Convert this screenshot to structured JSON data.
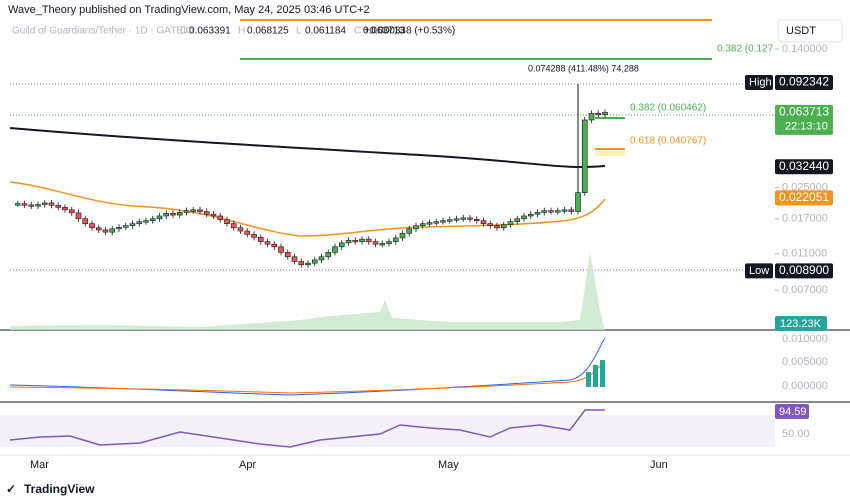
{
  "header": {
    "publisher": "Wave_Theory published on TradingView.com, May 24, 2025 03:46 UTC+2",
    "symbol": "Guild of Guardians/Tether · 1D · GATEIO",
    "ohlc": [
      {
        "key": "O",
        "value": "0.063391"
      },
      {
        "key": "H",
        "value": "0.068125"
      },
      {
        "key": "L",
        "value": "0.061184"
      },
      {
        "key": "C",
        "value": "0.063713"
      }
    ],
    "change": "+0.000338 (+0.53%)"
  },
  "currency": "USDT",
  "price_axis": {
    "log": true,
    "ylim": [
      0.00427,
      0.2008
    ],
    "yticks": [
      {
        "value": 0.14,
        "label": "0.140000"
      },
      {
        "value": 0.025,
        "label": "0.025000"
      },
      {
        "value": 0.017,
        "label": "0.017000"
      },
      {
        "value": 0.011,
        "label": "0.011000"
      },
      {
        "value": 0.007,
        "label": "0.007000"
      }
    ]
  },
  "markers": [
    {
      "tag": "High",
      "value": 0.092342,
      "label": "0.092342"
    },
    {
      "value": 0.063713,
      "label": "0.063713",
      "timer": "22:13:10"
    },
    {
      "value": 0.03244,
      "label": "0.032440"
    },
    {
      "value": 0.022051,
      "label": "0.022051"
    },
    {
      "tag": "Low",
      "value": 0.0089,
      "label": "0.008900"
    }
  ],
  "annotations": {
    "fib_top": "0.382 (0.127",
    "fib_382": "0.382 (0.060462)",
    "fib_618": "0.618 (0.040767)",
    "measure": "0.074288 (411.48%) 74,288"
  },
  "candles": {
    "closes": [
      0.0205,
      0.0202,
      0.0199,
      0.0203,
      0.0207,
      0.0201,
      0.0196,
      0.019,
      0.0183,
      0.017,
      0.016,
      0.0152,
      0.0148,
      0.0144,
      0.015,
      0.0153,
      0.0156,
      0.016,
      0.0164,
      0.0166,
      0.017,
      0.0176,
      0.0182,
      0.0178,
      0.0184,
      0.0188,
      0.019,
      0.0186,
      0.018,
      0.0176,
      0.0168,
      0.016,
      0.0152,
      0.0146,
      0.014,
      0.0135,
      0.0128,
      0.0124,
      0.012,
      0.0112,
      0.0106,
      0.01,
      0.0096,
      0.0098,
      0.0102,
      0.0106,
      0.0112,
      0.012,
      0.0126,
      0.013,
      0.0128,
      0.0132,
      0.0128,
      0.0124,
      0.0125,
      0.0128,
      0.0134,
      0.0142,
      0.015,
      0.0156,
      0.016,
      0.0162,
      0.0164,
      0.0166,
      0.0168,
      0.017,
      0.0172,
      0.0169,
      0.0166,
      0.016,
      0.0156,
      0.0152,
      0.0158,
      0.0164,
      0.017,
      0.0176,
      0.018,
      0.0184,
      0.0188,
      0.0186,
      0.0188,
      0.019,
      0.0186,
      0.0235,
      0.058,
      0.063,
      0.062,
      0.063713
    ]
  },
  "volume_label": "123.23K",
  "macd_axis": [
    "0.010000",
    "0.005000",
    "0.000000"
  ],
  "rsi": {
    "value_label": "94.59",
    "level": "50.00"
  },
  "months": [
    "Mar",
    "Apr",
    "May",
    "Jun"
  ],
  "footer": "TradingView"
}
